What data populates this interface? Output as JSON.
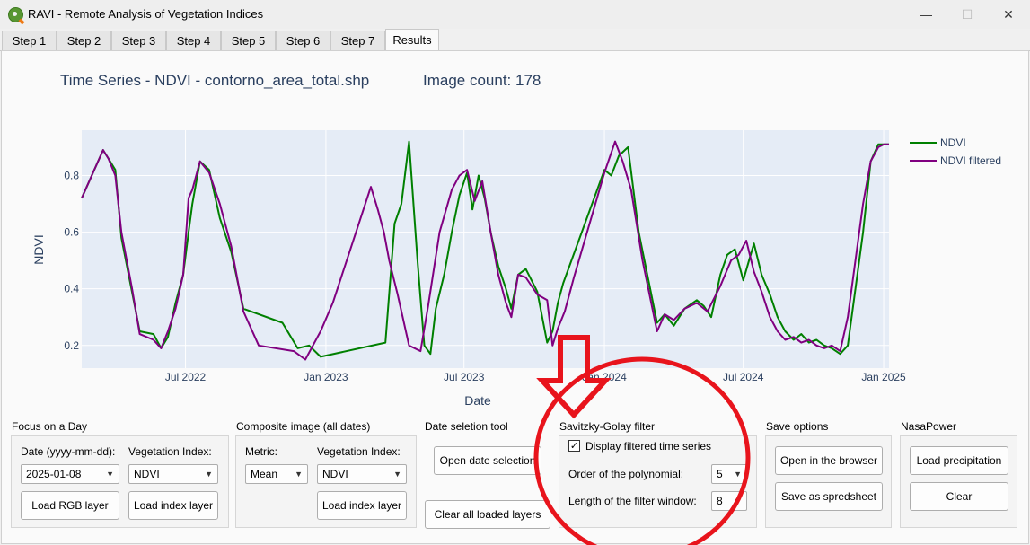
{
  "window": {
    "title": "RAVI - Remote Analysis of Vegetation Indices",
    "minimize_glyph": "—",
    "maximize_glyph": "☐",
    "close_glyph": "✕"
  },
  "tabs": [
    "Step 1",
    "Step 2",
    "Step 3",
    "Step 4",
    "Step 5",
    "Step 6",
    "Step 7",
    "Results"
  ],
  "active_tab": "Results",
  "header": {
    "plot_title": "Time Series - NDVI - contorno_area_total.shp",
    "image_count": "Image count: 178"
  },
  "chart_data": {
    "type": "line",
    "xlabel": "Date",
    "ylabel": "NDVI",
    "x_ticks": [
      "Jul 2022",
      "Jan 2023",
      "Jul 2023",
      "Jan 2024",
      "Jul 2024",
      "Jan 2025"
    ],
    "y_ticks": [
      "0.2",
      "0.4",
      "0.6",
      "0.8"
    ],
    "xlim": [
      "2022-02-15",
      "2025-01-08"
    ],
    "ylim": [
      0.12,
      0.96
    ],
    "grid": true,
    "legend_position": "right",
    "colors": {
      "NDVI": "#008000",
      "NDVI filtered": "#800080",
      "plot_bg": "#e5ecf6"
    },
    "series": [
      {
        "name": "NDVI",
        "x": [
          "2022-02-15",
          "2022-03-15",
          "2022-03-22",
          "2022-03-31",
          "2022-04-08",
          "2022-05-02",
          "2022-05-20",
          "2022-05-30",
          "2022-06-08",
          "2022-06-18",
          "2022-06-28",
          "2022-07-05",
          "2022-07-10",
          "2022-07-20",
          "2022-08-01",
          "2022-08-15",
          "2022-08-30",
          "2022-09-15",
          "2022-11-05",
          "2022-11-25",
          "2022-12-10",
          "2022-12-25",
          "2023-03-20",
          "2023-04-01",
          "2023-04-10",
          "2023-04-20",
          "2023-05-01",
          "2023-05-10",
          "2023-05-18",
          "2023-05-25",
          "2023-06-05",
          "2023-06-15",
          "2023-06-25",
          "2023-07-05",
          "2023-07-12",
          "2023-07-20",
          "2023-07-28",
          "2023-08-05",
          "2023-08-15",
          "2023-08-25",
          "2023-09-01",
          "2023-09-10",
          "2023-09-20",
          "2023-10-05",
          "2023-10-18",
          "2023-10-25",
          "2023-11-01",
          "2023-11-08",
          "2024-01-01",
          "2024-01-10",
          "2024-01-20",
          "2024-02-01",
          "2024-02-15",
          "2024-03-10",
          "2024-03-20",
          "2024-04-01",
          "2024-04-15",
          "2024-05-01",
          "2024-05-10",
          "2024-05-20",
          "2024-06-01",
          "2024-06-10",
          "2024-06-20",
          "2024-07-01",
          "2024-07-15",
          "2024-07-25",
          "2024-08-05",
          "2024-08-15",
          "2024-08-25",
          "2024-09-05",
          "2024-09-15",
          "2024-09-25",
          "2024-10-05",
          "2024-10-15",
          "2024-10-25",
          "2024-11-05",
          "2024-11-15",
          "2024-11-25",
          "2024-12-05",
          "2024-12-15",
          "2024-12-25",
          "2025-01-01",
          "2025-01-08"
        ],
        "y": [
          0.72,
          0.89,
          0.86,
          0.82,
          0.58,
          0.25,
          0.24,
          0.19,
          0.23,
          0.35,
          0.45,
          0.6,
          0.7,
          0.85,
          0.82,
          0.65,
          0.53,
          0.33,
          0.28,
          0.19,
          0.2,
          0.16,
          0.21,
          0.63,
          0.7,
          0.92,
          0.5,
          0.2,
          0.17,
          0.33,
          0.45,
          0.6,
          0.73,
          0.81,
          0.68,
          0.8,
          0.72,
          0.6,
          0.48,
          0.4,
          0.33,
          0.45,
          0.47,
          0.39,
          0.21,
          0.25,
          0.35,
          0.42,
          0.82,
          0.8,
          0.87,
          0.9,
          0.6,
          0.28,
          0.31,
          0.27,
          0.33,
          0.36,
          0.34,
          0.3,
          0.45,
          0.52,
          0.54,
          0.43,
          0.56,
          0.45,
          0.38,
          0.3,
          0.25,
          0.22,
          0.24,
          0.21,
          0.22,
          0.2,
          0.19,
          0.17,
          0.2,
          0.4,
          0.6,
          0.85,
          0.91,
          0.91,
          0.91
        ]
      },
      {
        "name": "NDVI filtered",
        "x": [
          "2022-02-15",
          "2022-03-15",
          "2022-03-22",
          "2022-03-31",
          "2022-04-08",
          "2022-04-22",
          "2022-05-02",
          "2022-05-20",
          "2022-05-30",
          "2022-06-08",
          "2022-06-18",
          "2022-06-28",
          "2022-07-05",
          "2022-07-10",
          "2022-07-20",
          "2022-08-01",
          "2022-08-15",
          "2022-08-30",
          "2022-09-15",
          "2022-10-05",
          "2022-11-20",
          "2022-12-05",
          "2022-12-25",
          "2023-01-10",
          "2023-03-01",
          "2023-03-10",
          "2023-03-18",
          "2023-03-25",
          "2023-04-05",
          "2023-04-20",
          "2023-05-05",
          "2023-05-15",
          "2023-05-30",
          "2023-06-15",
          "2023-06-25",
          "2023-07-05",
          "2023-07-15",
          "2023-07-25",
          "2023-08-05",
          "2023-08-15",
          "2023-08-25",
          "2023-09-01",
          "2023-09-10",
          "2023-09-20",
          "2023-10-05",
          "2023-10-18",
          "2023-10-25",
          "2023-11-01",
          "2023-11-10",
          "2023-11-22",
          "2024-01-01",
          "2024-01-15",
          "2024-01-25",
          "2024-02-05",
          "2024-02-20",
          "2024-03-10",
          "2024-03-20",
          "2024-04-01",
          "2024-04-15",
          "2024-05-01",
          "2024-05-15",
          "2024-06-01",
          "2024-06-15",
          "2024-06-25",
          "2024-07-05",
          "2024-07-15",
          "2024-07-25",
          "2024-08-05",
          "2024-08-15",
          "2024-08-25",
          "2024-09-05",
          "2024-09-15",
          "2024-09-25",
          "2024-10-05",
          "2024-10-15",
          "2024-10-25",
          "2024-11-05",
          "2024-11-15",
          "2024-11-25",
          "2024-12-05",
          "2024-12-15",
          "2024-12-25",
          "2025-01-01",
          "2025-01-08"
        ],
        "y": [
          0.72,
          0.89,
          0.86,
          0.8,
          0.6,
          0.4,
          0.24,
          0.22,
          0.19,
          0.25,
          0.33,
          0.45,
          0.72,
          0.75,
          0.85,
          0.81,
          0.7,
          0.55,
          0.32,
          0.2,
          0.18,
          0.15,
          0.25,
          0.35,
          0.76,
          0.68,
          0.6,
          0.5,
          0.38,
          0.2,
          0.18,
          0.34,
          0.6,
          0.75,
          0.8,
          0.82,
          0.71,
          0.78,
          0.6,
          0.45,
          0.35,
          0.3,
          0.45,
          0.44,
          0.38,
          0.36,
          0.2,
          0.26,
          0.32,
          0.44,
          0.81,
          0.92,
          0.85,
          0.75,
          0.5,
          0.25,
          0.31,
          0.29,
          0.33,
          0.35,
          0.32,
          0.41,
          0.5,
          0.52,
          0.57,
          0.46,
          0.39,
          0.3,
          0.25,
          0.22,
          0.23,
          0.21,
          0.22,
          0.2,
          0.19,
          0.2,
          0.18,
          0.3,
          0.5,
          0.7,
          0.85,
          0.9,
          0.91,
          0.91
        ]
      }
    ]
  },
  "focus_day": {
    "title": "Focus on a Day",
    "date_label": "Date (yyyy-mm-dd):",
    "date_value": "2025-01-08",
    "index_label": "Vegetation Index:",
    "index_value": "NDVI",
    "load_rgb": "Load RGB layer",
    "load_index": "Load index layer"
  },
  "composite": {
    "title": "Composite image (all dates)",
    "metric_label": "Metric:",
    "metric_value": "Mean",
    "index_label": "Vegetation Index:",
    "index_value": "NDVI",
    "load_index": "Load index layer"
  },
  "date_selection": {
    "title": "Date seletion tool",
    "open_button": "Open date selection",
    "clear_button": "Clear all loaded layers"
  },
  "savgol": {
    "title": "Savitzky-Golay filter",
    "display_checkbox_label": "Display filtered time series",
    "display_checked": true,
    "order_label": "Order of the polynomial:",
    "order_value": "5",
    "window_label": "Length of the filter window:",
    "window_value": "8"
  },
  "save_options": {
    "title": "Save options",
    "open_browser": "Open in the browser",
    "save_spreadsheet": "Save as spredsheet"
  },
  "nasapower": {
    "title": "NasaPower",
    "load_precip": "Load precipitation",
    "clear": "Clear"
  },
  "annotation": {
    "color": "#e8141c"
  }
}
